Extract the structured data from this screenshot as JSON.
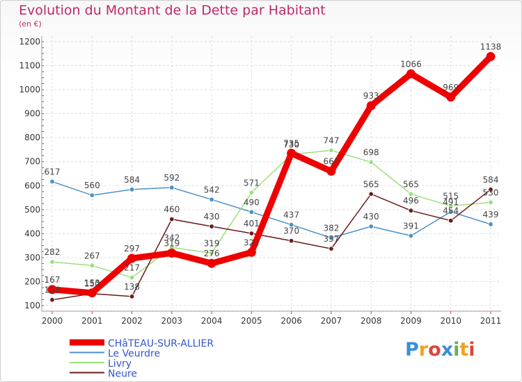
{
  "title": "Evolution du Montant de la Dette par Habitant",
  "subtitle": "(en €)",
  "logo": {
    "letters": [
      "P",
      "r",
      "o",
      "x",
      "i",
      "t",
      "i"
    ],
    "colors": [
      "#3a8fd6",
      "#f0a020",
      "#e0453a",
      "#3a8fd6",
      "#6ab04c",
      "#f0a020",
      "#e0453a"
    ]
  },
  "chart_data": {
    "type": "line",
    "x": [
      "2000",
      "2001",
      "2002",
      "2003",
      "2004",
      "2005",
      "2006",
      "2007",
      "2008",
      "2009",
      "2010",
      "2011"
    ],
    "ylim": [
      100,
      1200
    ],
    "yticks": [
      100,
      200,
      300,
      400,
      500,
      600,
      700,
      800,
      900,
      1000,
      1100,
      1200
    ],
    "grid": true,
    "legend_position": "bottom-left",
    "series": [
      {
        "name": "Le Veurdre",
        "color": "#4a90c8",
        "values": [
          617,
          560,
          584,
          592,
          542,
          490,
          437,
          382,
          430,
          391,
          491,
          439
        ]
      },
      {
        "name": "Livry",
        "color": "#9be07a",
        "values": [
          282,
          267,
          217,
          342,
          319,
          571,
          730,
          747,
          698,
          565,
          515,
          530
        ]
      },
      {
        "name": "Neure",
        "color": "#6b1a1a",
        "values": [
          124,
          150,
          138,
          460,
          430,
          401,
          370,
          337,
          565,
          496,
          454,
          584
        ]
      },
      {
        "name": "CHâTEAU-SUR-ALLIER",
        "color": "#ee0000",
        "values": [
          167,
          153,
          297,
          319,
          276,
          322,
          735,
          660,
          933,
          1066,
          969,
          1138
        ]
      }
    ]
  }
}
